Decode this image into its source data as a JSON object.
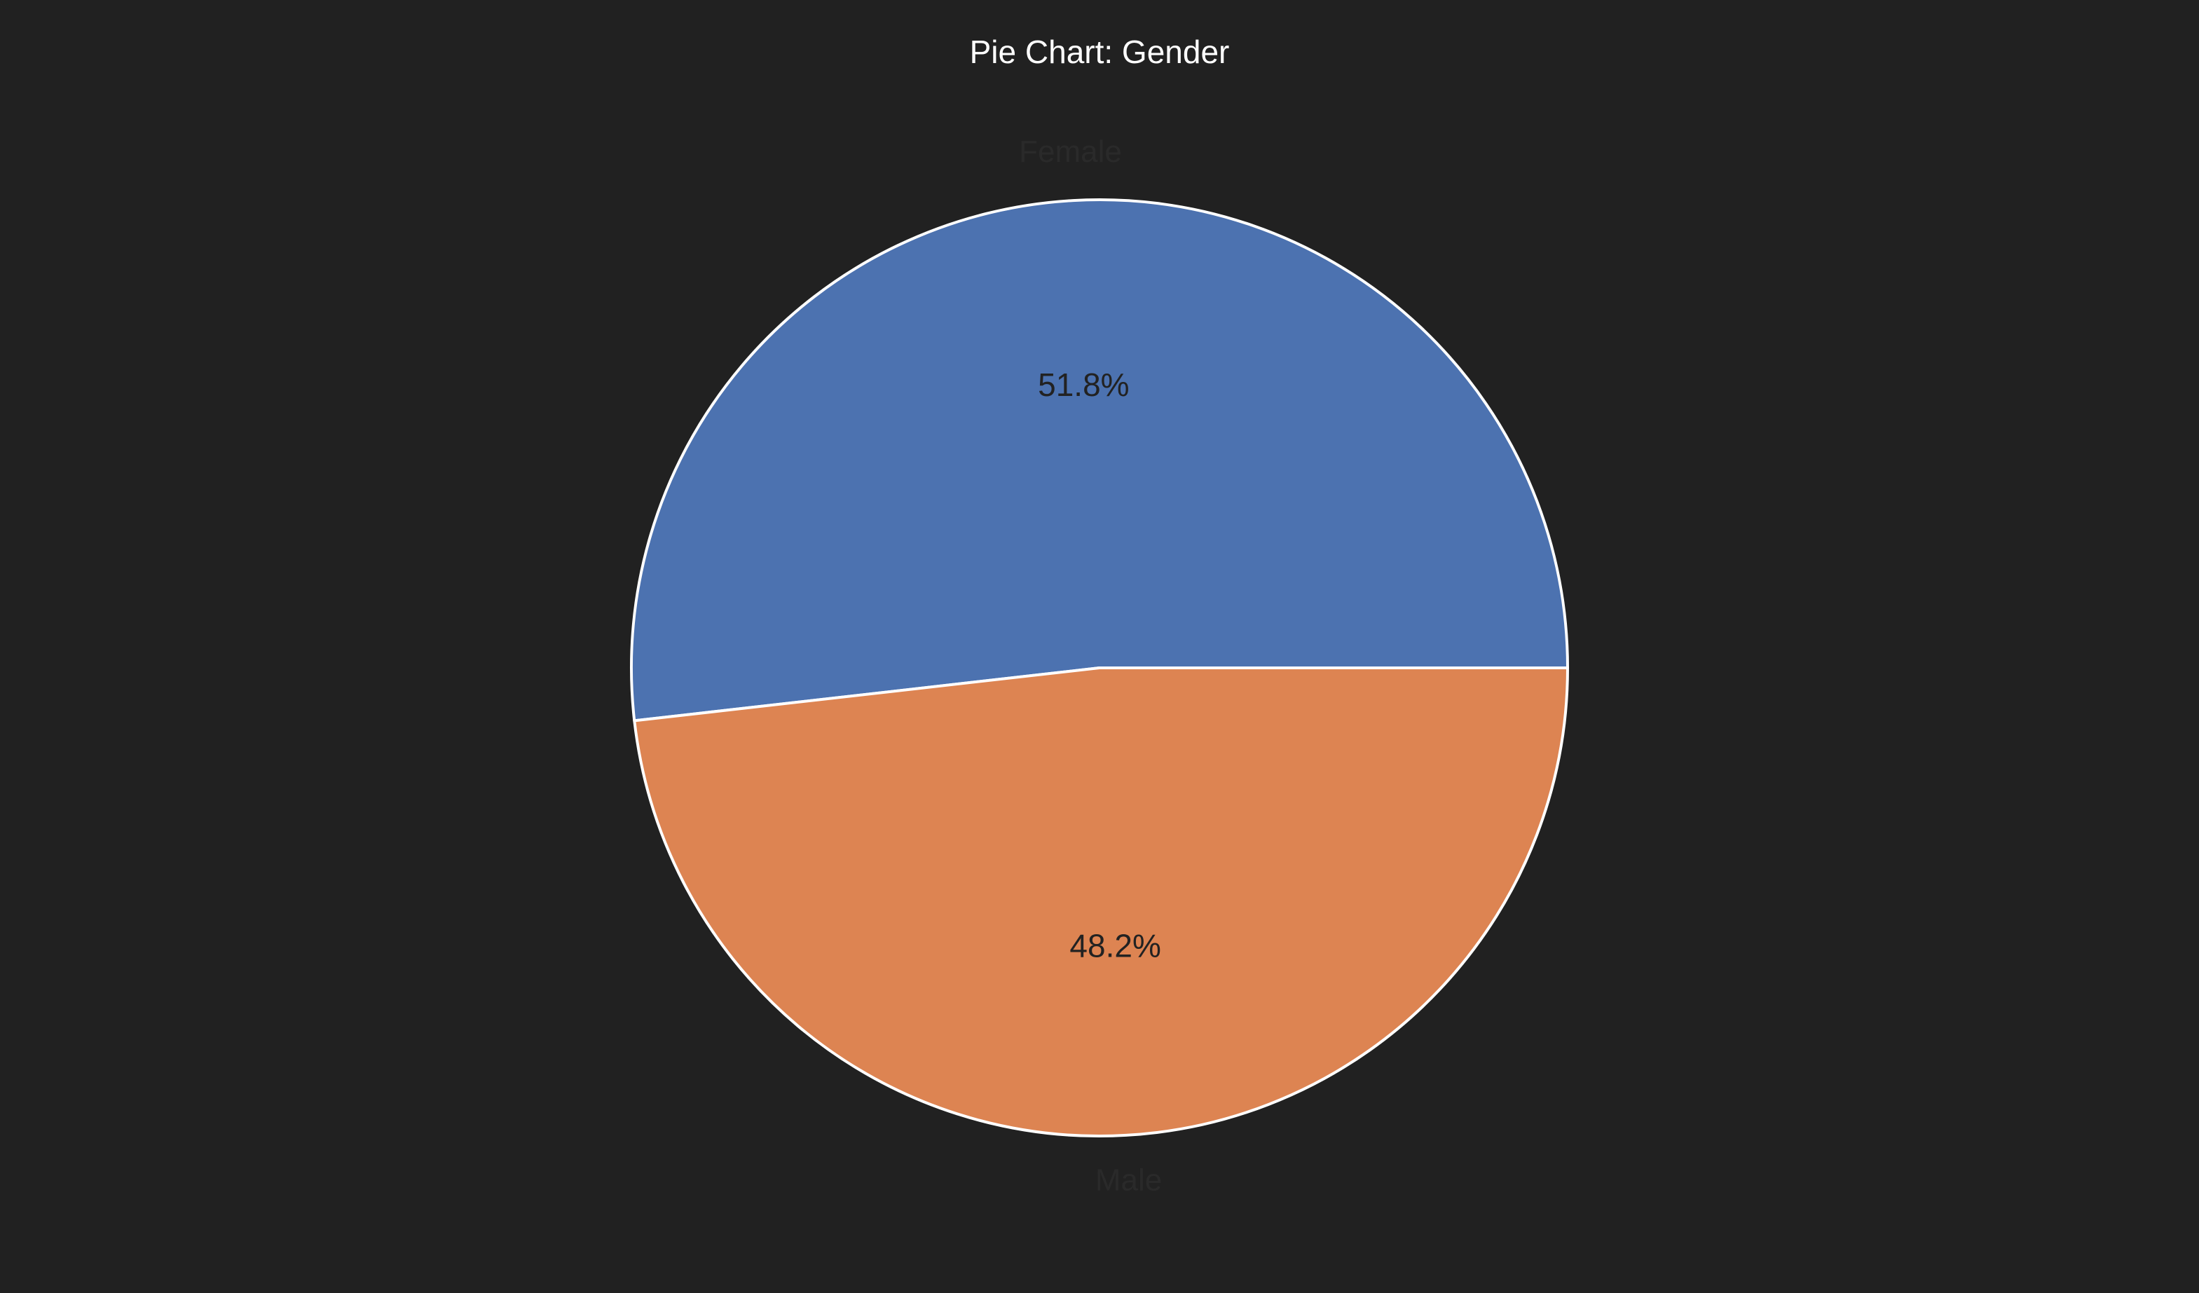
{
  "chart_data": {
    "type": "pie",
    "title": "Pie Chart: Gender",
    "categories": [
      "Female",
      "Male"
    ],
    "values": [
      51.8,
      48.2
    ],
    "percent_labels": [
      "51.8%",
      "48.2%"
    ],
    "colors": [
      "#4c72b0",
      "#dd8452"
    ],
    "edge_color": "#ffffff",
    "background": "#212121",
    "start_angle_deg": 0,
    "direction": "counterclockwise",
    "legend": "none"
  }
}
